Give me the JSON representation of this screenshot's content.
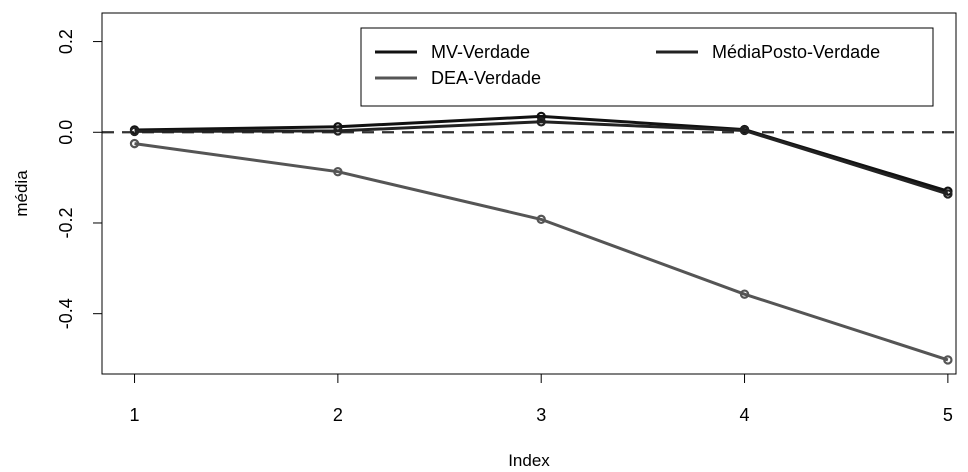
{
  "chart_data": {
    "type": "line",
    "xlabel": "Index",
    "ylabel": "média",
    "x": [
      1,
      2,
      3,
      4,
      5
    ],
    "xlim": [
      0.84,
      5.04
    ],
    "ylim": [
      -0.533,
      0.263
    ],
    "xticks": [
      "1",
      "2",
      "3",
      "4",
      "5"
    ],
    "yticks": [
      "-0.4",
      "-0.2",
      "0.0",
      "0.2"
    ],
    "ytick_values": [
      -0.4,
      -0.2,
      0.0,
      0.2
    ],
    "reference_line": {
      "y": 0.0,
      "style": "dashed"
    },
    "series": [
      {
        "name": "MV-Verdade",
        "values": [
          0.005,
          0.012,
          0.035,
          0.006,
          -0.13
        ],
        "color": "#111111"
      },
      {
        "name": "DEA-Verdade",
        "values": [
          -0.025,
          -0.087,
          -0.192,
          -0.357,
          -0.502
        ],
        "color": "#555555"
      },
      {
        "name": "MédiaPosto-Verdade",
        "values": [
          0.002,
          0.003,
          0.023,
          0.004,
          -0.136
        ],
        "color": "#222222"
      }
    ],
    "legend": {
      "placement": "top-right",
      "entries": [
        "MV-Verdade",
        "MédiaPosto-Verdade",
        "DEA-Verdade"
      ]
    },
    "grid": false
  }
}
